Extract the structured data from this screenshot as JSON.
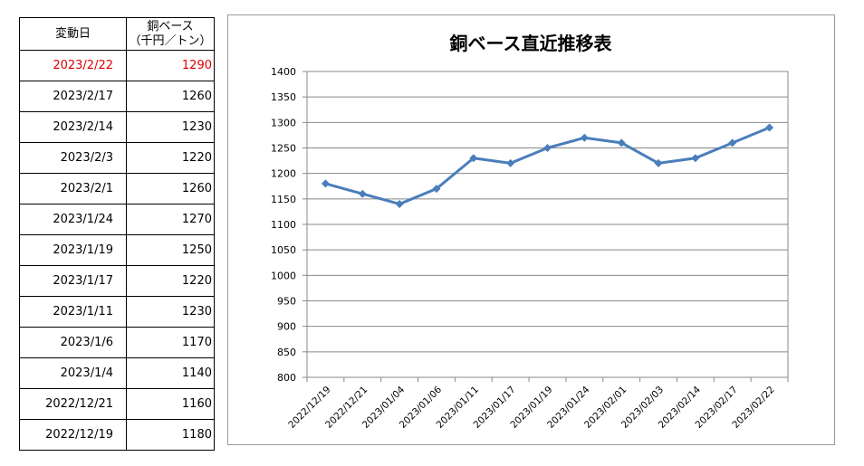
{
  "table": {
    "header": {
      "date": "変動日",
      "value_line1": "銅ベース",
      "value_line2": "（千円／トン）"
    },
    "highlight_color": "#e00000",
    "rows": [
      {
        "date": "2023/2/22",
        "value": "1290",
        "highlight": true
      },
      {
        "date": "2023/2/17",
        "value": "1260"
      },
      {
        "date": "2023/2/14",
        "value": "1230"
      },
      {
        "date": "2023/2/3",
        "value": "1220"
      },
      {
        "date": "2023/2/1",
        "value": "1260"
      },
      {
        "date": "2023/1/24",
        "value": "1270"
      },
      {
        "date": "2023/1/19",
        "value": "1250"
      },
      {
        "date": "2023/1/17",
        "value": "1220"
      },
      {
        "date": "2023/1/11",
        "value": "1230"
      },
      {
        "date": "2023/1/6",
        "value": "1170"
      },
      {
        "date": "2023/1/4",
        "value": "1140"
      },
      {
        "date": "2022/12/21",
        "value": "1160"
      },
      {
        "date": "2022/12/19",
        "value": "1180"
      }
    ]
  },
  "chart_data": {
    "type": "line",
    "title": "銅ベース直近推移表",
    "xlabel": "",
    "ylabel": "",
    "categories": [
      "2022/12/19",
      "2022/12/21",
      "2023/01/04",
      "2023/01/06",
      "2023/01/11",
      "2023/01/17",
      "2023/01/19",
      "2023/01/24",
      "2023/02/01",
      "2023/02/03",
      "2023/02/14",
      "2023/02/17",
      "2023/02/22"
    ],
    "series": [
      {
        "values": [
          1180,
          1160,
          1140,
          1170,
          1230,
          1220,
          1250,
          1270,
          1260,
          1220,
          1230,
          1260,
          1290
        ],
        "color": "#4a7ebb"
      }
    ],
    "ylim": [
      800,
      1400
    ],
    "yticks": [
      800,
      850,
      900,
      950,
      1000,
      1050,
      1100,
      1150,
      1200,
      1250,
      1300,
      1350,
      1400
    ],
    "grid": true,
    "marker": "diamond",
    "legend": "none"
  }
}
